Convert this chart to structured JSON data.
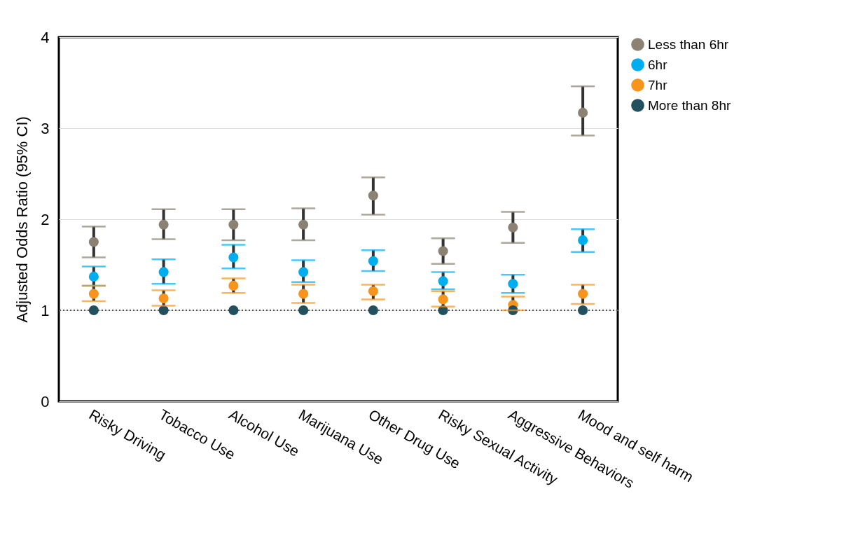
{
  "chart_data": {
    "type": "scatter",
    "ylabel": "Adjusted Odds Ratio (95% CI)",
    "categories": [
      "Risky Driving",
      "Tobacco Use",
      "Alcohol Use",
      "Marijuana Use",
      "Other Drug Use",
      "Risky Sexual Activity",
      "Aggressive Behaviors",
      "Mood and self harm"
    ],
    "ylim": [
      0,
      4
    ],
    "yticks": [
      0,
      1,
      2,
      3,
      4
    ],
    "grid": "y",
    "legend": "right",
    "marker": "circle",
    "series": [
      {
        "name": "Less than 6hr",
        "color": "#8c8274",
        "values": [
          1.75,
          1.94,
          1.94,
          1.94,
          2.26,
          1.65,
          1.91,
          3.17
        ],
        "errors": [
          [
            1.58,
            1.92
          ],
          [
            1.78,
            2.11
          ],
          [
            1.77,
            2.11
          ],
          [
            1.77,
            2.12
          ],
          [
            2.05,
            2.46
          ],
          [
            1.51,
            1.79
          ],
          [
            1.74,
            2.08
          ],
          [
            2.92,
            3.46
          ]
        ]
      },
      {
        "name": "6hr",
        "color": "#00aeef",
        "values": [
          1.37,
          1.42,
          1.58,
          1.42,
          1.54,
          1.32,
          1.29,
          1.77
        ],
        "errors": [
          [
            1.27,
            1.48
          ],
          [
            1.29,
            1.56
          ],
          [
            1.46,
            1.72
          ],
          [
            1.31,
            1.55
          ],
          [
            1.43,
            1.66
          ],
          [
            1.23,
            1.42
          ],
          [
            1.19,
            1.39
          ],
          [
            1.64,
            1.89
          ]
        ]
      },
      {
        "name": "7hr",
        "color": "#f7941d",
        "values": [
          1.18,
          1.13,
          1.27,
          1.18,
          1.21,
          1.12,
          1.06,
          1.18
        ],
        "errors": [
          [
            1.1,
            1.27
          ],
          [
            1.05,
            1.22
          ],
          [
            1.19,
            1.35
          ],
          [
            1.08,
            1.28
          ],
          [
            1.12,
            1.28
          ],
          [
            1.04,
            1.21
          ],
          [
            1.0,
            1.15
          ],
          [
            1.07,
            1.28
          ]
        ]
      },
      {
        "name": "More than 8hr",
        "color": "#22505f",
        "values": [
          1,
          1,
          1,
          1,
          1,
          1,
          1,
          1
        ]
      }
    ],
    "ref_lines": [
      {
        "axis": "y",
        "value": 1,
        "line_style": "dotted",
        "color": "#555555"
      }
    ]
  }
}
